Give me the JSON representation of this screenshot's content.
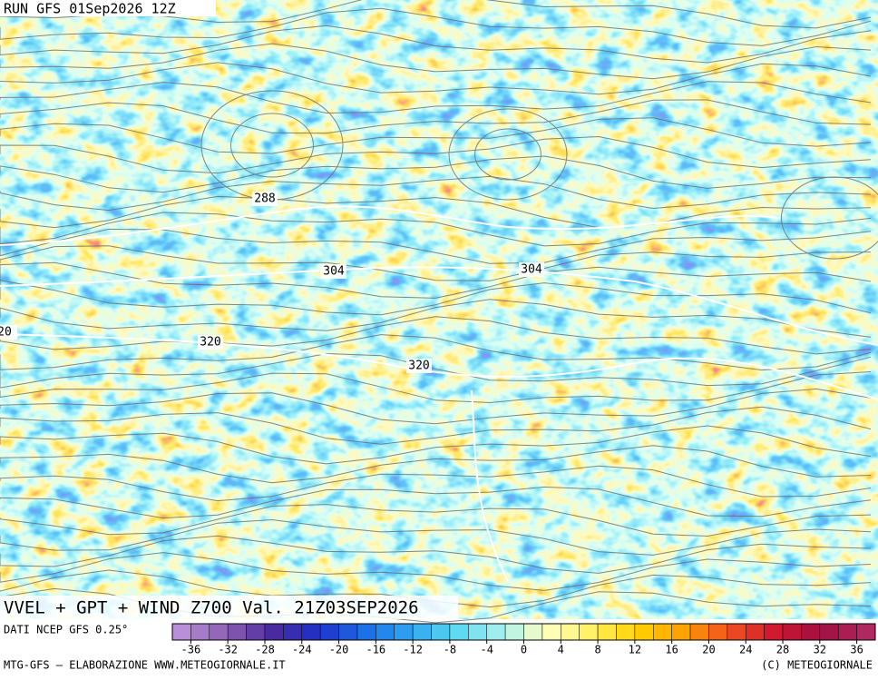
{
  "header": {
    "run": "RUN GFS 01Sep2026 12Z"
  },
  "map": {
    "title": "VVEL + GPT + WIND Z700 Val. 21Z03SEP2026",
    "contour_labels": [
      "288",
      "304",
      "304",
      "320",
      "320",
      "20"
    ]
  },
  "legend": {
    "source": "DATI NCEP GFS 0.25°",
    "ticks": [
      -36,
      -32,
      -28,
      -24,
      -20,
      -16,
      -12,
      -8,
      -4,
      0,
      4,
      8,
      12,
      16,
      20,
      24,
      28,
      32,
      36
    ]
  },
  "footer": {
    "left": "MTG-GFS — ELABORAZIONE WWW.METEOGIORNALE.IT",
    "right": "(C) METEOGIORNALE"
  }
}
